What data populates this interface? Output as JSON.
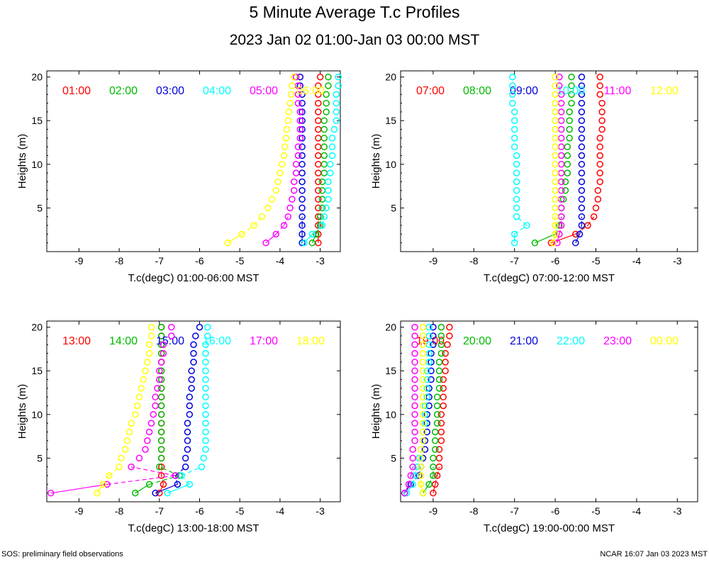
{
  "title": "5 Minute Average T.c Profiles",
  "subtitle": "2023 Jan 02 01:00-Jan 03 00:00 MST",
  "footer_left": "SOS: preliminary field observations",
  "footer_right": "NCAR 16:07 Jan 03 2023 MST",
  "colors": [
    "#ff0000",
    "#00bb00",
    "#0000dd",
    "#00ffff",
    "#ff00ff",
    "#ffff00"
  ],
  "heights": [
    1,
    2,
    3,
    4,
    5,
    6,
    7,
    8,
    9,
    10,
    11,
    12,
    13,
    14,
    15,
    16,
    17,
    18,
    19,
    20
  ],
  "chart_data": [
    {
      "type": "scatter",
      "xlabel": "T.c(degC) 01:00-06:00 MST",
      "ylabel": "Heights (m)",
      "xlim": [
        -9.8,
        -2.5
      ],
      "ylim": [
        0,
        20.7
      ],
      "xticks": [
        -9,
        -8,
        -7,
        -6,
        -5,
        -4,
        -3
      ],
      "yticks": [
        5,
        10,
        15,
        20
      ],
      "series": [
        {
          "name": "01:00",
          "values": [
            -3.05,
            -3.05,
            -3.05,
            -3.05,
            -3.05,
            -3.05,
            -3.05,
            -3.05,
            -3.05,
            -3.05,
            -3.05,
            -3.05,
            -3.05,
            -3.05,
            -3.05,
            -3.05,
            -3.05,
            -3.05,
            -3.05,
            -3.0
          ]
        },
        {
          "name": "02:00",
          "values": [
            -3.2,
            -3.1,
            -3.0,
            -3.0,
            -2.95,
            -2.95,
            -2.95,
            -2.95,
            -2.9,
            -2.9,
            -2.9,
            -2.9,
            -2.9,
            -2.9,
            -2.9,
            -2.85,
            -2.85,
            -2.85,
            -2.8,
            -2.8
          ]
        },
        {
          "name": "03:00",
          "values": [
            -3.45,
            -3.45,
            -3.45,
            -3.45,
            -3.45,
            -3.45,
            -3.45,
            -3.45,
            -3.45,
            -3.45,
            -3.45,
            -3.45,
            -3.45,
            -3.45,
            -3.45,
            -3.45,
            -3.45,
            -3.45,
            -3.5,
            -3.5
          ]
        },
        {
          "name": "04:00",
          "values": [
            -3.4,
            -3.2,
            -2.95,
            -2.9,
            -2.85,
            -2.8,
            -2.8,
            -2.8,
            -2.75,
            -2.75,
            -2.7,
            -2.7,
            -2.7,
            -2.65,
            -2.6,
            -2.6,
            -2.6,
            -2.6,
            -2.55,
            -2.55
          ]
        },
        {
          "name": "05:00",
          "values": [
            -4.35,
            -4.1,
            -3.9,
            -3.8,
            -3.75,
            -3.7,
            -3.65,
            -3.65,
            -3.6,
            -3.6,
            -3.55,
            -3.55,
            -3.5,
            -3.5,
            -3.5,
            -3.5,
            -3.55,
            -3.55,
            -3.55,
            -3.6
          ]
        },
        {
          "name": "06:00",
          "values": [
            -5.3,
            -4.95,
            -4.65,
            -4.45,
            -4.3,
            -4.2,
            -4.1,
            -4.05,
            -4.0,
            -3.95,
            -3.9,
            -3.88,
            -3.85,
            -3.83,
            -3.8,
            -3.78,
            -3.75,
            -3.72,
            -3.7,
            -3.65
          ]
        }
      ]
    },
    {
      "type": "scatter",
      "xlabel": "T.c(degC) 07:00-12:00 MST",
      "ylabel": "Heights (m)",
      "xlim": [
        -9.8,
        -2.5
      ],
      "ylim": [
        0,
        20.7
      ],
      "xticks": [
        -9,
        -8,
        -7,
        -6,
        -5,
        -4,
        -3
      ],
      "yticks": [
        5,
        10,
        15,
        20
      ],
      "series": [
        {
          "name": "07:00",
          "values": [
            -6.1,
            -5.5,
            -5.2,
            -5.05,
            -5.0,
            -4.95,
            -4.95,
            -4.9,
            -4.9,
            -4.9,
            -4.9,
            -4.9,
            -4.9,
            -4.85,
            -4.85,
            -4.85,
            -4.85,
            -4.9,
            -4.9,
            -4.9
          ]
        },
        {
          "name": "08:00",
          "values": [
            -6.5,
            -6.0,
            -5.9,
            -5.85,
            -5.85,
            -5.8,
            -5.75,
            -5.75,
            -5.7,
            -5.7,
            -5.7,
            -5.7,
            -5.65,
            -5.65,
            -5.65,
            -5.65,
            -5.6,
            -5.6,
            -5.6,
            -5.6
          ]
        },
        {
          "name": "09:00",
          "values": [
            -5.5,
            -5.4,
            -5.35,
            -5.35,
            -5.35,
            -5.35,
            -5.35,
            -5.35,
            -5.35,
            -5.35,
            -5.35,
            -5.35,
            -5.35,
            -5.35,
            -5.35,
            -5.35,
            -5.35,
            -5.35,
            -5.35,
            -5.35
          ]
        },
        {
          "name": "10:00",
          "values": [
            -7.0,
            -7.0,
            -6.7,
            -6.95,
            -6.95,
            -6.95,
            -6.95,
            -6.95,
            -6.95,
            -6.95,
            -6.95,
            -7.0,
            -7.0,
            -7.0,
            -7.0,
            -7.0,
            -7.05,
            -7.05,
            -7.05,
            -7.05
          ]
        },
        {
          "name": "11:00",
          "values": [
            -5.95,
            -5.9,
            -5.85,
            -5.85,
            -5.85,
            -5.85,
            -5.85,
            -5.85,
            -5.85,
            -5.85,
            -5.85,
            -5.85,
            -5.85,
            -5.85,
            -5.85,
            -5.85,
            -5.85,
            -5.85,
            -5.9,
            -5.9
          ]
        },
        {
          "name": "12:00",
          "values": [
            -6.05,
            -6.0,
            -6.0,
            -6.0,
            -6.0,
            -6.0,
            -6.0,
            -6.0,
            -6.0,
            -6.0,
            -6.0,
            -6.0,
            -6.0,
            -6.0,
            -6.0,
            -6.0,
            -6.0,
            -6.0,
            -6.0,
            -6.0
          ]
        }
      ]
    },
    {
      "type": "scatter",
      "xlabel": "T.c(degC) 13:00-18:00 MST",
      "ylabel": "Heights (m)",
      "xlim": [
        -9.8,
        -2.5
      ],
      "ylim": [
        0,
        20.7
      ],
      "xticks": [
        -9,
        -8,
        -7,
        -6,
        -5,
        -4,
        -3
      ],
      "yticks": [
        5,
        10,
        15,
        20
      ],
      "series": [
        {
          "name": "13:00",
          "values": [
            -7.0,
            -6.9,
            -6.95,
            -6.95,
            -6.95,
            -6.95,
            -6.95,
            -6.95,
            -6.95,
            -6.95,
            -6.95,
            -6.95,
            -6.95,
            -6.95,
            -6.95,
            -6.95,
            -6.95,
            -6.95,
            -6.95,
            -6.95
          ]
        },
        {
          "name": "14:00",
          "values": [
            -7.6,
            -7.25,
            -6.5,
            -7.0,
            -6.95,
            -6.95,
            -6.95,
            -6.95,
            -6.95,
            -6.95,
            -6.95,
            -6.95,
            -6.95,
            -6.95,
            -6.95,
            -6.95,
            -6.95,
            -6.95,
            -6.95,
            -6.95
          ]
        },
        {
          "name": "15:00",
          "values": [
            -7.1,
            -6.55,
            -6.6,
            -6.35,
            -6.35,
            -6.3,
            -6.3,
            -6.3,
            -6.3,
            -6.25,
            -6.25,
            -6.25,
            -6.2,
            -6.2,
            -6.2,
            -6.15,
            -6.15,
            -6.15,
            -6.1,
            -6.0
          ]
        },
        {
          "name": "16:00",
          "values": [
            -6.8,
            -6.25,
            -6.45,
            -5.95,
            -5.9,
            -5.85,
            -5.85,
            -5.85,
            -5.85,
            -5.85,
            -5.85,
            -5.85,
            -5.85,
            -5.85,
            -5.85,
            -5.85,
            -5.85,
            -5.85,
            -5.8,
            -5.8
          ]
        },
        {
          "name": "17:00",
          "values": [
            -9.7,
            -8.3,
            -6.6,
            -7.7,
            -7.5,
            -7.35,
            -7.3,
            -7.25,
            -7.2,
            -7.15,
            -7.1,
            -7.1,
            -7.05,
            -7.0,
            -7.0,
            -6.95,
            -6.9,
            -6.9,
            -6.7,
            -6.7
          ]
        },
        {
          "name": "18:00",
          "values": [
            -8.55,
            -8.4,
            -8.25,
            -8.0,
            -7.95,
            -7.85,
            -7.8,
            -7.75,
            -7.7,
            -7.6,
            -7.55,
            -7.5,
            -7.45,
            -7.4,
            -7.35,
            -7.3,
            -7.25,
            -7.25,
            -7.2,
            -7.2
          ]
        }
      ]
    },
    {
      "type": "scatter",
      "xlabel": "T.c(degC) 19:00-00:00 MST",
      "ylabel": "Heights (m)",
      "xlim": [
        -9.8,
        -2.5
      ],
      "ylim": [
        0,
        20.7
      ],
      "xticks": [
        -9,
        -8,
        -7,
        -6,
        -5,
        -4,
        -3
      ],
      "yticks": [
        5,
        10,
        15,
        20
      ],
      "series": [
        {
          "name": "19:00",
          "values": [
            -9.0,
            -8.95,
            -8.9,
            -8.85,
            -8.85,
            -8.85,
            -8.8,
            -8.8,
            -8.8,
            -8.8,
            -8.75,
            -8.75,
            -8.75,
            -8.75,
            -8.7,
            -8.7,
            -8.7,
            -8.65,
            -8.6,
            -8.6
          ]
        },
        {
          "name": "20:00",
          "values": [
            -9.25,
            -9.1,
            -9.0,
            -9.0,
            -9.0,
            -8.95,
            -8.95,
            -8.95,
            -8.9,
            -8.9,
            -8.9,
            -8.9,
            -8.85,
            -8.85,
            -8.85,
            -8.85,
            -8.8,
            -8.8,
            -8.8,
            -8.8
          ]
        },
        {
          "name": "21:00",
          "values": [
            -9.7,
            -9.55,
            -9.35,
            -9.3,
            -9.25,
            -9.2,
            -9.2,
            -9.15,
            -9.15,
            -9.15,
            -9.1,
            -9.1,
            -9.1,
            -9.05,
            -9.05,
            -9.05,
            -9.05,
            -9.0,
            -9.0,
            -9.0
          ]
        },
        {
          "name": "22:00",
          "values": [
            -9.65,
            -9.5,
            -9.45,
            -9.4,
            -9.35,
            -9.3,
            -9.25,
            -9.25,
            -9.2,
            -9.2,
            -9.2,
            -9.15,
            -9.15,
            -9.15,
            -9.15,
            -9.1,
            -9.1,
            -9.1,
            -9.1,
            -9.1
          ]
        },
        {
          "name": "23:00",
          "values": [
            -9.7,
            -9.6,
            -9.55,
            -9.5,
            -9.5,
            -9.5,
            -9.45,
            -9.45,
            -9.45,
            -9.45,
            -9.45,
            -9.45,
            -9.45,
            -9.45,
            -9.45,
            -9.45,
            -9.45,
            -9.45,
            -9.45,
            -9.45
          ]
        },
        {
          "name": "00:00",
          "values": [
            -9.25,
            -9.3,
            -9.3,
            -9.3,
            -9.3,
            -9.3,
            -9.25,
            -9.25,
            -9.25,
            -9.25,
            -9.25,
            -9.25,
            -9.25,
            -9.25,
            -9.25,
            -9.25,
            -9.25,
            -9.25,
            -9.25,
            -9.25
          ]
        }
      ]
    }
  ]
}
